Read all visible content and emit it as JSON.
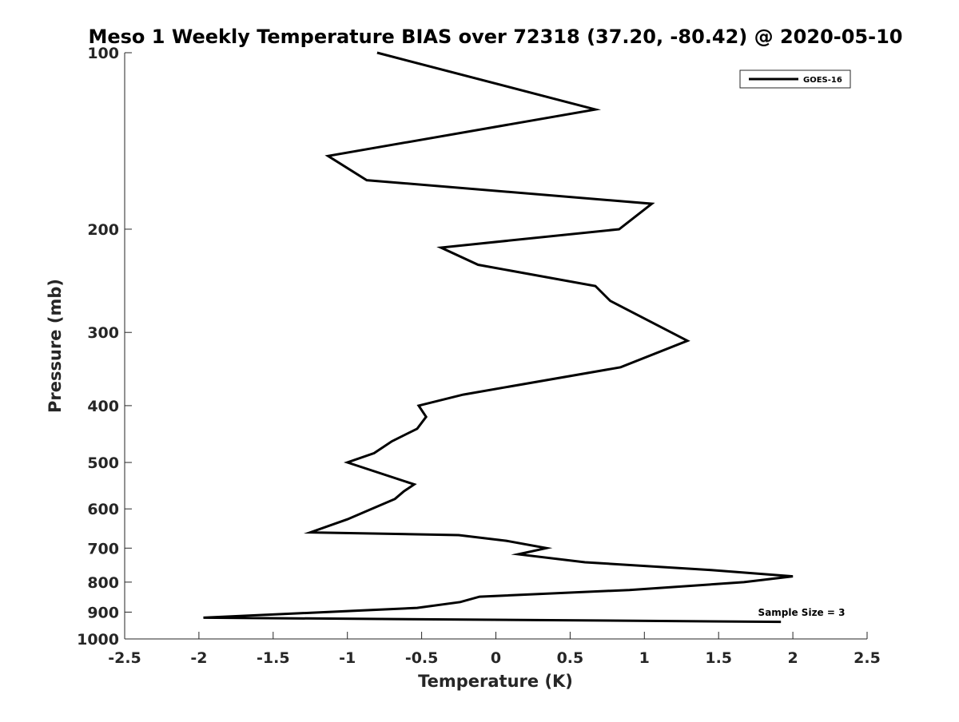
{
  "chart_data": {
    "type": "line",
    "title": "Meso 1 Weekly Temperature BIAS over 72318 (37.20, -80.42) @ 2020-05-10",
    "xlabel": "Temperature (K)",
    "ylabel": "Pressure (mb)",
    "xlim": [
      -2.5,
      2.5
    ],
    "ylim": [
      100,
      1000
    ],
    "y_scale": "log",
    "y_reversed": true,
    "grid": false,
    "x_ticks": [
      -2.5,
      -2,
      -1.5,
      -1,
      -0.5,
      0,
      0.5,
      1,
      1.5,
      2,
      2.5
    ],
    "x_tick_labels": [
      "-2.5",
      "-2",
      "-1.5",
      "-1",
      "-0.5",
      "0",
      "0.5",
      "1",
      "1.5",
      "2",
      "2.5"
    ],
    "y_ticks": [
      100,
      200,
      300,
      400,
      500,
      600,
      700,
      800,
      900,
      1000
    ],
    "y_tick_labels": [
      "100",
      "200",
      "300",
      "400",
      "500",
      "600",
      "700",
      "800",
      "900",
      "1000"
    ],
    "legend": {
      "position": "top-right",
      "entries": [
        "GOES-16"
      ]
    },
    "annotation": "Sample Size = 3",
    "series": [
      {
        "name": "GOES-16",
        "color": "#000000",
        "points": [
          {
            "t": -0.8,
            "p": 100
          },
          {
            "t": 0.67,
            "p": 125
          },
          {
            "t": -1.13,
            "p": 150
          },
          {
            "t": -0.87,
            "p": 165
          },
          {
            "t": 1.05,
            "p": 181
          },
          {
            "t": 0.83,
            "p": 200
          },
          {
            "t": -0.37,
            "p": 215
          },
          {
            "t": -0.12,
            "p": 230
          },
          {
            "t": 0.67,
            "p": 250
          },
          {
            "t": 0.77,
            "p": 265
          },
          {
            "t": 1.29,
            "p": 310
          },
          {
            "t": 0.84,
            "p": 344
          },
          {
            "t": -0.22,
            "p": 383
          },
          {
            "t": -0.52,
            "p": 400
          },
          {
            "t": -0.47,
            "p": 418
          },
          {
            "t": -0.53,
            "p": 438
          },
          {
            "t": -0.7,
            "p": 460
          },
          {
            "t": -0.82,
            "p": 482
          },
          {
            "t": -1.0,
            "p": 500
          },
          {
            "t": -0.55,
            "p": 545
          },
          {
            "t": -0.62,
            "p": 560
          },
          {
            "t": -0.68,
            "p": 577
          },
          {
            "t": -1.0,
            "p": 625
          },
          {
            "t": -1.25,
            "p": 658
          },
          {
            "t": -0.25,
            "p": 665
          },
          {
            "t": 0.07,
            "p": 680
          },
          {
            "t": 0.34,
            "p": 700
          },
          {
            "t": 0.15,
            "p": 717
          },
          {
            "t": 0.6,
            "p": 740
          },
          {
            "t": 1.45,
            "p": 763
          },
          {
            "t": 2.0,
            "p": 782
          },
          {
            "t": 1.67,
            "p": 800
          },
          {
            "t": 0.9,
            "p": 825
          },
          {
            "t": -0.11,
            "p": 847
          },
          {
            "t": -0.24,
            "p": 865
          },
          {
            "t": -0.53,
            "p": 885
          },
          {
            "t": -1.97,
            "p": 920
          },
          {
            "t": 1.92,
            "p": 935
          }
        ]
      }
    ]
  }
}
